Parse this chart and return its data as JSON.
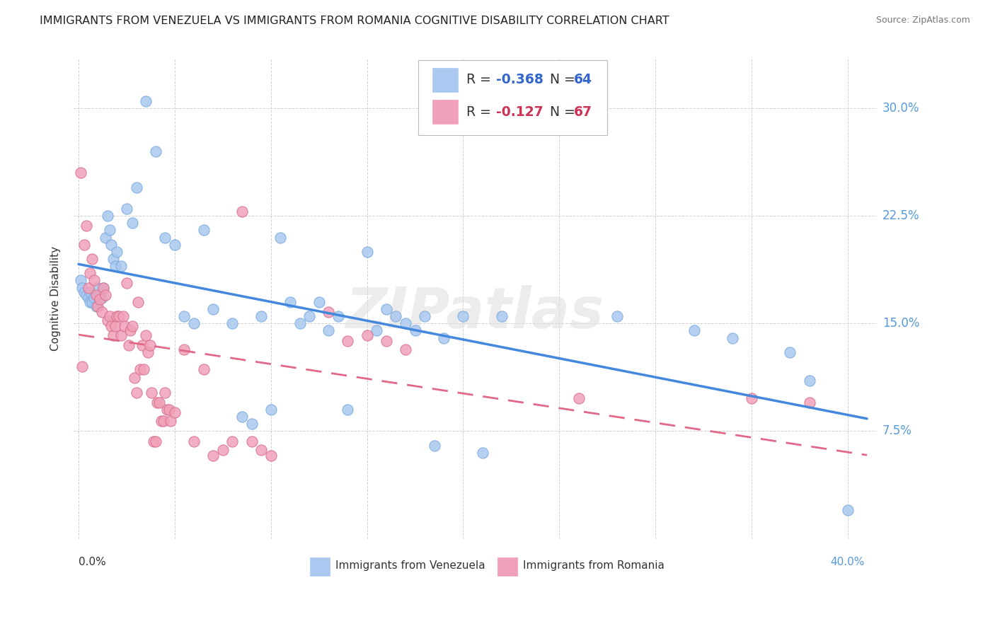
{
  "title": "IMMIGRANTS FROM VENEZUELA VS IMMIGRANTS FROM ROMANIA COGNITIVE DISABILITY CORRELATION CHART",
  "source": "Source: ZipAtlas.com",
  "ylabel_label": "Cognitive Disability",
  "watermark": "ZIPatlas",
  "venezuela_color": "#aac8f0",
  "venezuela_edge": "#7aaade",
  "romania_color": "#f0a0b8",
  "romania_edge": "#d87090",
  "trendline_venezuela": "#4488dd",
  "trendline_romania": "#e06888",
  "grid_color": "#cccccc",
  "ytick_vals": [
    0.075,
    0.15,
    0.225,
    0.3
  ],
  "ytick_labels": [
    "7.5%",
    "15.0%",
    "22.5%",
    "30.0%"
  ],
  "xlim": [
    -0.003,
    0.415
  ],
  "ylim": [
    0.0,
    0.335
  ],
  "venezuela_x": [
    0.001,
    0.002,
    0.003,
    0.004,
    0.005,
    0.006,
    0.006,
    0.007,
    0.008,
    0.009,
    0.01,
    0.011,
    0.012,
    0.013,
    0.014,
    0.015,
    0.016,
    0.017,
    0.018,
    0.019,
    0.02,
    0.022,
    0.025,
    0.028,
    0.03,
    0.035,
    0.04,
    0.045,
    0.05,
    0.055,
    0.06,
    0.065,
    0.07,
    0.08,
    0.085,
    0.09,
    0.095,
    0.1,
    0.105,
    0.11,
    0.115,
    0.12,
    0.125,
    0.13,
    0.135,
    0.14,
    0.15,
    0.155,
    0.16,
    0.165,
    0.17,
    0.175,
    0.18,
    0.185,
    0.19,
    0.2,
    0.21,
    0.22,
    0.28,
    0.32,
    0.34,
    0.37,
    0.38,
    0.4
  ],
  "venezuela_y": [
    0.18,
    0.175,
    0.172,
    0.17,
    0.168,
    0.165,
    0.172,
    0.165,
    0.168,
    0.162,
    0.175,
    0.17,
    0.168,
    0.175,
    0.21,
    0.225,
    0.215,
    0.205,
    0.195,
    0.19,
    0.2,
    0.19,
    0.23,
    0.22,
    0.245,
    0.305,
    0.27,
    0.21,
    0.205,
    0.155,
    0.15,
    0.215,
    0.16,
    0.15,
    0.085,
    0.08,
    0.155,
    0.09,
    0.21,
    0.165,
    0.15,
    0.155,
    0.165,
    0.145,
    0.155,
    0.09,
    0.2,
    0.145,
    0.16,
    0.155,
    0.15,
    0.145,
    0.155,
    0.065,
    0.14,
    0.155,
    0.06,
    0.155,
    0.155,
    0.145,
    0.14,
    0.13,
    0.11,
    0.02
  ],
  "romania_x": [
    0.001,
    0.002,
    0.003,
    0.004,
    0.005,
    0.006,
    0.007,
    0.008,
    0.009,
    0.01,
    0.011,
    0.012,
    0.013,
    0.014,
    0.015,
    0.016,
    0.017,
    0.018,
    0.019,
    0.02,
    0.021,
    0.022,
    0.023,
    0.024,
    0.025,
    0.026,
    0.027,
    0.028,
    0.029,
    0.03,
    0.031,
    0.032,
    0.033,
    0.034,
    0.035,
    0.036,
    0.037,
    0.038,
    0.039,
    0.04,
    0.041,
    0.042,
    0.043,
    0.044,
    0.045,
    0.046,
    0.047,
    0.048,
    0.05,
    0.055,
    0.06,
    0.065,
    0.07,
    0.075,
    0.08,
    0.085,
    0.09,
    0.095,
    0.1,
    0.13,
    0.14,
    0.15,
    0.16,
    0.17,
    0.26,
    0.35,
    0.38
  ],
  "romania_y": [
    0.255,
    0.12,
    0.205,
    0.218,
    0.175,
    0.185,
    0.195,
    0.18,
    0.17,
    0.162,
    0.167,
    0.158,
    0.175,
    0.17,
    0.152,
    0.155,
    0.148,
    0.142,
    0.148,
    0.155,
    0.155,
    0.142,
    0.155,
    0.148,
    0.178,
    0.135,
    0.145,
    0.148,
    0.112,
    0.102,
    0.165,
    0.118,
    0.135,
    0.118,
    0.142,
    0.13,
    0.135,
    0.102,
    0.068,
    0.068,
    0.095,
    0.095,
    0.082,
    0.082,
    0.102,
    0.09,
    0.09,
    0.082,
    0.088,
    0.132,
    0.068,
    0.118,
    0.058,
    0.062,
    0.068,
    0.228,
    0.068,
    0.062,
    0.058,
    0.158,
    0.138,
    0.142,
    0.138,
    0.132,
    0.098,
    0.098,
    0.095
  ]
}
